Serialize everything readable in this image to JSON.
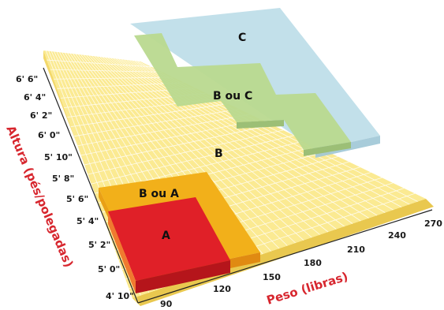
{
  "zones": {
    "a": "A",
    "b_or_a": "B ou A",
    "b": "B",
    "b_or_c": "B ou C",
    "c": "C"
  },
  "axes": {
    "x_title": "Peso (libras)",
    "y_title": "Altura (pés/polegadas)",
    "x_ticks": [
      "90",
      "120",
      "150",
      "180",
      "210",
      "240",
      "270"
    ],
    "y_ticks": [
      "4' 10\"",
      "5' 0\"",
      "5' 2\"",
      "5' 4\"",
      "5' 6\"",
      "5' 8\"",
      "5' 10\"",
      "6' 0\"",
      "6' 2\"",
      "6' 4\"",
      "6' 6\""
    ]
  },
  "colors": {
    "zone_a": "#e02028",
    "zone_b_or_a": "#f2b01a",
    "zone_b": "#fbe98c",
    "zone_b_or_c": "#b9d98f",
    "zone_c": "#b7dbe6",
    "axis_title": "#d7262e"
  }
}
